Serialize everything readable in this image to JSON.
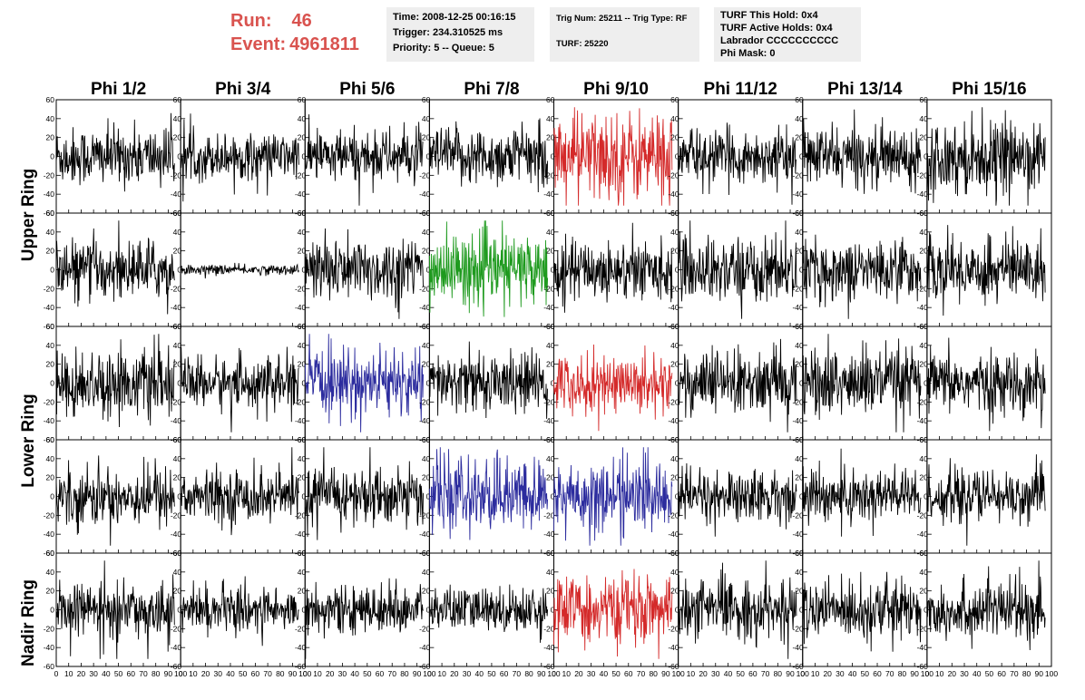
{
  "header": {
    "run_label": "Run:",
    "run_value": "46",
    "event_label": "Event:",
    "event_value": "4961811",
    "info1": {
      "time": "Time: 2008-12-25 00:16:15",
      "trigger": "Trigger: 234.310525 ms",
      "priority": "Priority: 5 -- Queue: 5"
    },
    "info2": {
      "trig": "Trig Num: 25211 -- Trig Type: RF",
      "turf": "TURF: 25220"
    },
    "info3": {
      "this_hold": "TURF This Hold: 0x4",
      "active_holds": "TURF Active Holds: 0x4",
      "labrador": "Labrador CCCCCCCCCC",
      "phi_mask": "Phi Mask: 0"
    }
  },
  "ring_labels": [
    "Upper Ring",
    "Lower Ring",
    "Nadir Ring"
  ],
  "colors": {
    "default_trace": "#000000",
    "red_trace": "#d42a2a",
    "green_trace": "#1e9a1e",
    "blue_trace": "#2c2c9e",
    "run_text": "#d9534f"
  },
  "chart_data": {
    "type": "line",
    "title": "",
    "columns": [
      "Phi 1/2",
      "Phi 3/4",
      "Phi 5/6",
      "Phi 7/8",
      "Phi 9/10",
      "Phi 11/12",
      "Phi 13/14",
      "Phi 15/16"
    ],
    "xlim": [
      0,
      100
    ],
    "ylim": [
      -60,
      60
    ],
    "x_ticks": [
      0,
      10,
      20,
      30,
      40,
      50,
      60,
      70,
      80,
      90,
      100
    ],
    "y_ticks": [
      -60,
      -40,
      -20,
      0,
      20,
      40,
      60
    ],
    "panel_rows": 5,
    "panel_amplitude": [
      [
        18,
        14,
        16,
        18,
        28,
        16,
        18,
        22
      ],
      [
        18,
        3,
        20,
        22,
        18,
        20,
        18,
        20
      ],
      [
        20,
        16,
        20,
        18,
        18,
        20,
        22,
        18
      ],
      [
        18,
        16,
        18,
        22,
        22,
        16,
        18,
        16
      ],
      [
        16,
        14,
        14,
        14,
        20,
        18,
        18,
        18
      ]
    ],
    "panel_color": [
      [
        "default",
        "default",
        "default",
        "default",
        "red",
        "default",
        "default",
        "default"
      ],
      [
        "default",
        "default",
        "default",
        "green",
        "default",
        "default",
        "default",
        "default"
      ],
      [
        "default",
        "default",
        "blue",
        "default",
        "red",
        "default",
        "default",
        "default"
      ],
      [
        "default",
        "default",
        "default",
        "blue",
        "blue",
        "default",
        "default",
        "default"
      ],
      [
        "default",
        "default",
        "default",
        "default",
        "red",
        "default",
        "default",
        "default"
      ]
    ]
  }
}
